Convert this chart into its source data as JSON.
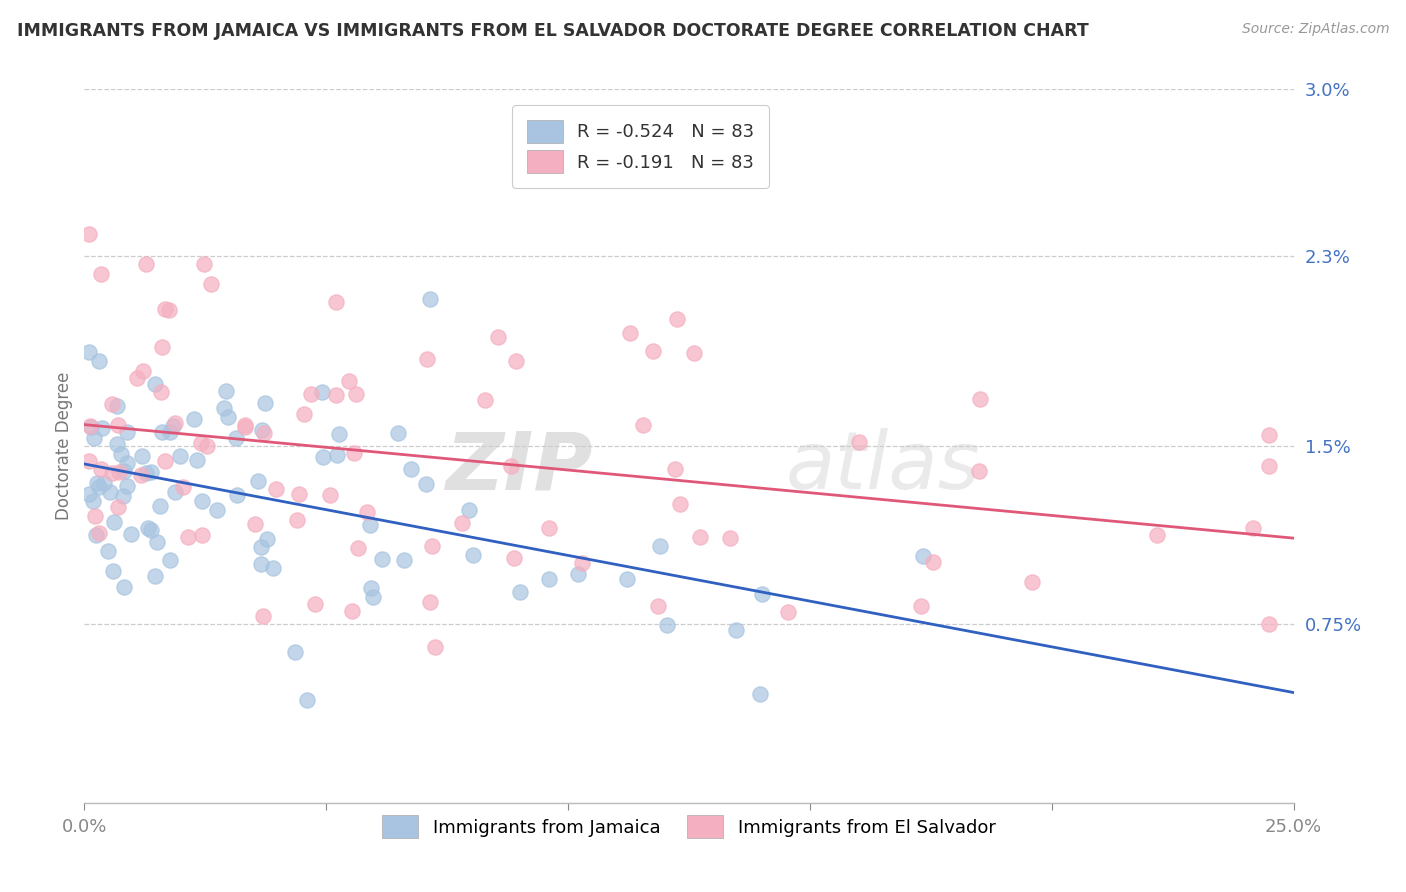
{
  "title": "IMMIGRANTS FROM JAMAICA VS IMMIGRANTS FROM EL SALVADOR DOCTORATE DEGREE CORRELATION CHART",
  "source": "Source: ZipAtlas.com",
  "xlabel_jamaica": "Immigrants from Jamaica",
  "xlabel_elsalvador": "Immigrants from El Salvador",
  "ylabel": "Doctorate Degree",
  "xlim": [
    0.0,
    0.25
  ],
  "ylim": [
    0.0,
    0.03
  ],
  "xticks": [
    0.0,
    0.05,
    0.1,
    0.15,
    0.2,
    0.25
  ],
  "xticklabels": [
    "0.0%",
    "",
    "",
    "",
    "",
    "25.0%"
  ],
  "yticks": [
    0.0,
    0.0075,
    0.015,
    0.023,
    0.03
  ],
  "yticklabels": [
    "",
    "0.75%",
    "1.5%",
    "2.3%",
    "3.0%"
  ],
  "r_jamaica": -0.524,
  "r_elsalvador": -0.191,
  "n_jamaica": 83,
  "n_elsalvador": 83,
  "color_jamaica": "#a8c4e0",
  "color_elsalvador": "#f4afc0",
  "line_color_jamaica": "#3060c0",
  "line_color_elsalvador": "#e05878",
  "watermark_zip": "ZIP",
  "watermark_atlas": "atlas",
  "background_color": "#ffffff",
  "grid_color": "#cccccc",
  "title_color": "#333333",
  "axis_tick_color": "#4472c4",
  "ylabel_color": "#777777",
  "seed_jamaica": 42,
  "seed_elsalvador": 99
}
